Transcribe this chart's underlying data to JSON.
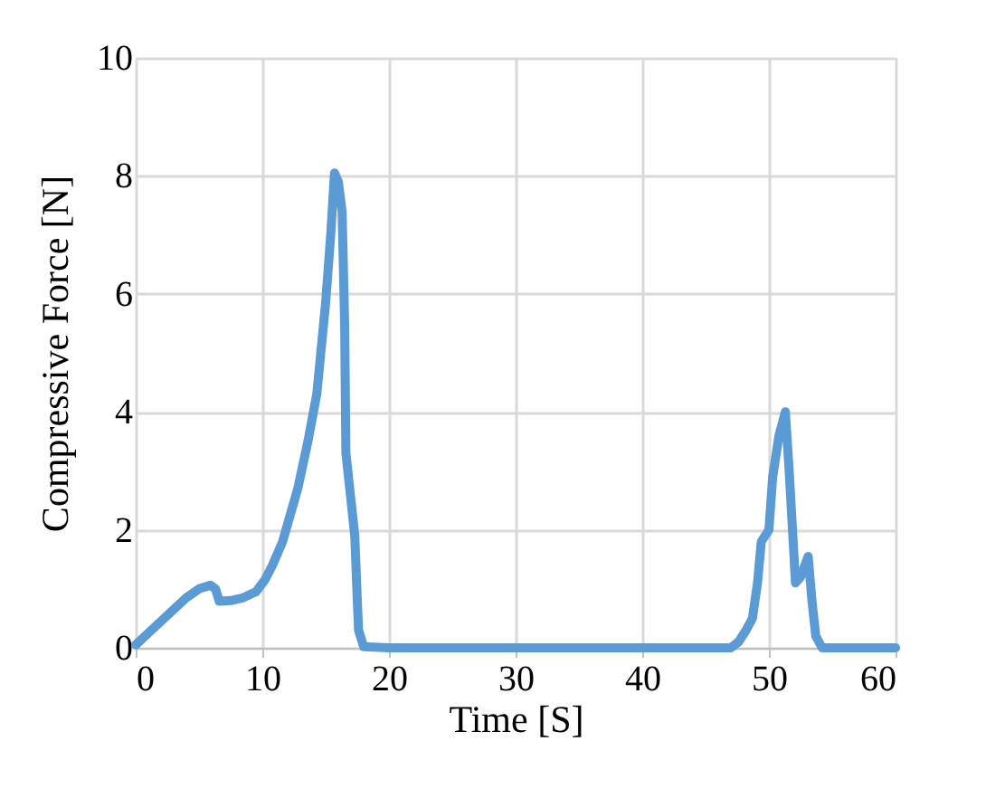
{
  "chart_data": {
    "type": "line",
    "xlabel": "Time   [S]",
    "ylabel": "Compressive Force   [N]",
    "xlim": [
      0,
      60
    ],
    "xticks": [
      0,
      10,
      20,
      30,
      40,
      50,
      60
    ],
    "ylim": [
      0,
      10
    ],
    "yticks": [
      0,
      2,
      4,
      6,
      8,
      10
    ],
    "grid": true,
    "marker": "none",
    "line_style": "solid",
    "series": [
      {
        "color": "#5b9bd5",
        "x": [
          0,
          1,
          2,
          3,
          4,
          5,
          5.9,
          6.3,
          6.6,
          7.5,
          8.5,
          9.5,
          10.2,
          10.8,
          11.6,
          12.8,
          13.6,
          14.3,
          15,
          15.4,
          15.7,
          16.0,
          16.3,
          16.5,
          16.6,
          17.0,
          17.3,
          17.5,
          17.6,
          18,
          20,
          30,
          40,
          47,
          47.6,
          48.2,
          48.7,
          49.1,
          49.4,
          50.0,
          50.3,
          50.8,
          51.3,
          51.6,
          52.1,
          52.5,
          53.1,
          53.4,
          53.7,
          54.2,
          60
        ],
        "values": [
          0.05,
          0.25,
          0.45,
          0.65,
          0.85,
          1.0,
          1.06,
          1.0,
          0.79,
          0.8,
          0.85,
          0.95,
          1.15,
          1.4,
          1.8,
          2.7,
          3.5,
          4.3,
          5.85,
          7.0,
          8.05,
          7.9,
          7.4,
          5.5,
          3.3,
          2.5,
          1.9,
          0.8,
          0.3,
          0.02,
          0,
          0,
          0,
          0,
          0.1,
          0.3,
          0.5,
          1.1,
          1.8,
          2.0,
          2.9,
          3.6,
          4.0,
          3.0,
          1.1,
          1.2,
          1.55,
          0.8,
          0.2,
          0,
          0
        ]
      }
    ]
  }
}
